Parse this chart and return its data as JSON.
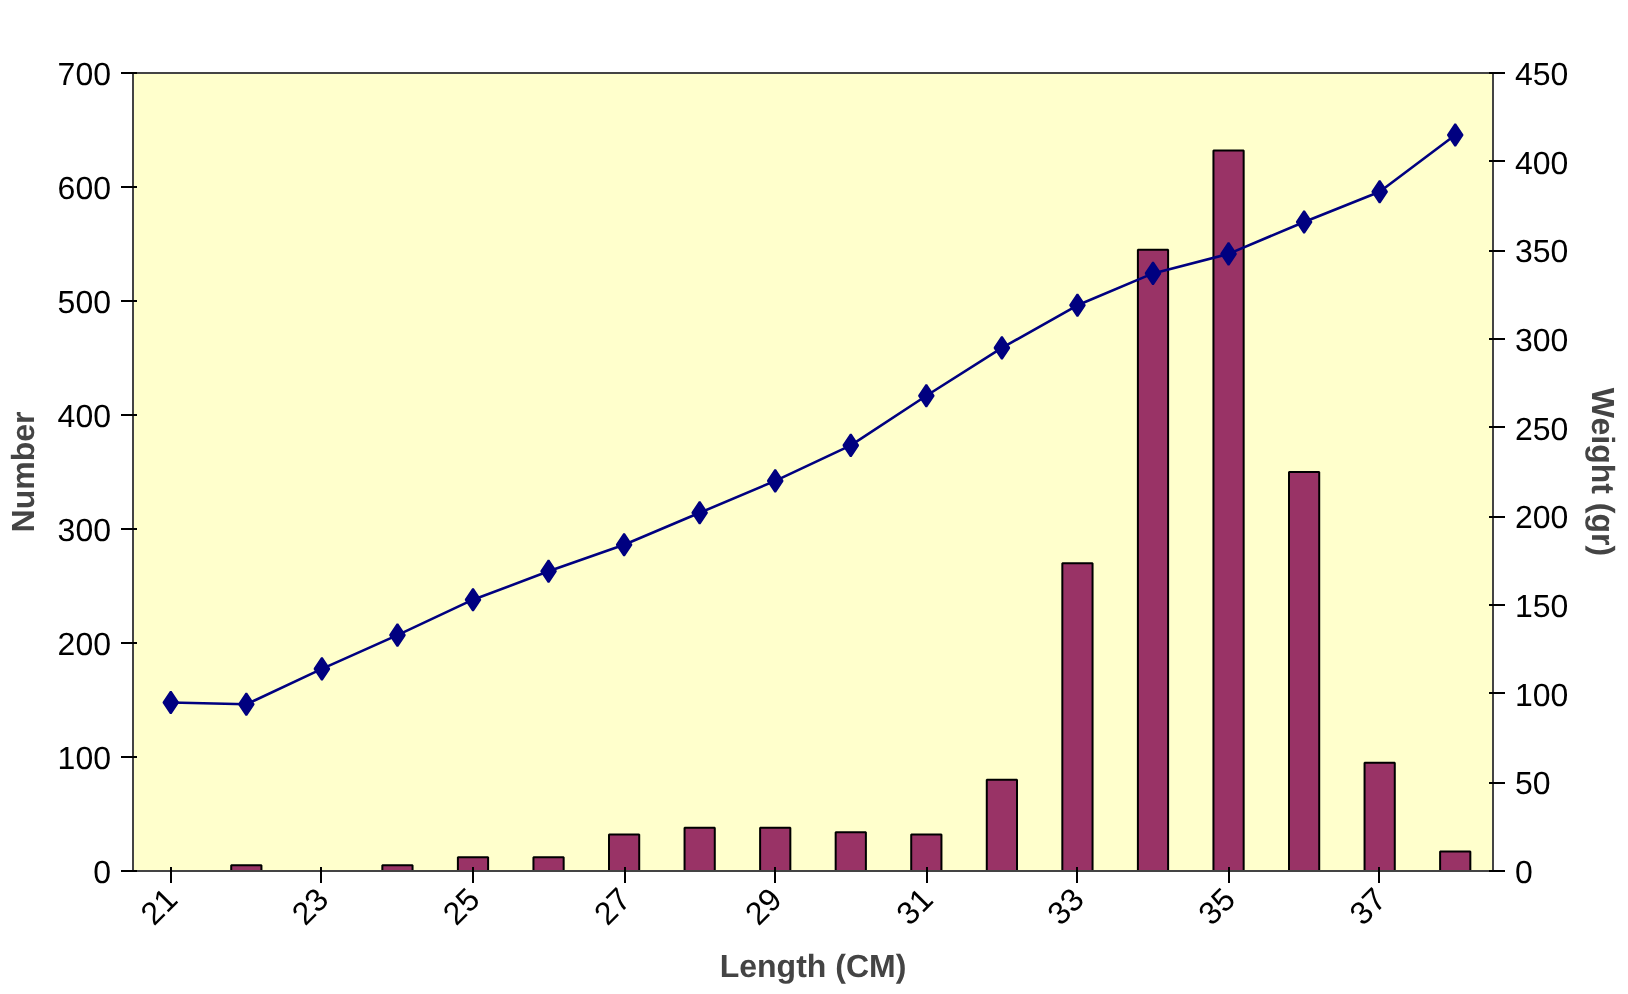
{
  "chart_data": {
    "type": "bar",
    "xlabel": "Length (CM)",
    "ylabel": "Number",
    "y2label": "Weight (gr)",
    "categories": [
      "21",
      null,
      "23",
      null,
      "25",
      null,
      "27",
      null,
      "29",
      null,
      "31",
      null,
      "33",
      null,
      "35",
      null,
      "37",
      null
    ],
    "series": [
      {
        "color": "#993366",
        "values": [
          0,
          5,
          0,
          5,
          12,
          12,
          32,
          38,
          38,
          34,
          32,
          80,
          270,
          545,
          632,
          350,
          95,
          17
        ]
      },
      {
        "type": "line",
        "axis": "y2",
        "marker": "diamond",
        "color": "#000080",
        "values": [
          95,
          94,
          114,
          133,
          153,
          169,
          184,
          202,
          220,
          240,
          268,
          295,
          319,
          337,
          348,
          366,
          383,
          415
        ]
      }
    ],
    "ylim": [
      0,
      700
    ],
    "yticks": [
      0,
      100,
      200,
      300,
      400,
      500,
      600,
      700
    ],
    "y2lim": [
      0,
      450
    ],
    "y2ticks": [
      0,
      50,
      100,
      150,
      200,
      250,
      300,
      350,
      400,
      450
    ]
  }
}
